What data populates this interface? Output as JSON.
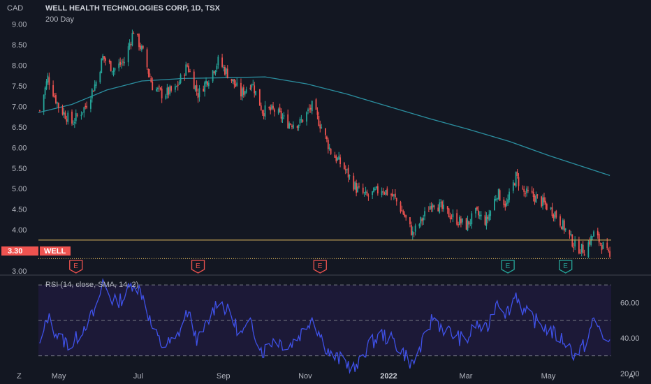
{
  "header": {
    "currency": "CAD",
    "title": "WELL HEALTH TECHNOLOGIES CORP, 1D, TSX",
    "indicator": "200 Day"
  },
  "price_tag": {
    "value": "3.30",
    "symbol": "WELL"
  },
  "rsi_label": "RSI (14, close, SMA, 14, 2)",
  "footer": {
    "left_icon": "Z",
    "right_icon": "A"
  },
  "colors": {
    "background": "#131722",
    "up": "#26a69a",
    "down": "#ef5350",
    "ma": "#2b8fa0",
    "rsi": "#3f51e8",
    "hline": "#e8c060",
    "tag": "#ef5350"
  },
  "chart_data": [
    {
      "type": "candlestick",
      "title": "WELL HEALTH TECHNOLOGIES CORP, 1D, TSX",
      "ylabel": "CAD",
      "ylim": [
        3.0,
        9.25
      ],
      "y_ticks": [
        "9.00",
        "8.50",
        "8.00",
        "7.50",
        "7.00",
        "6.50",
        "6.00",
        "5.50",
        "5.00",
        "4.50",
        "4.00",
        "3.50",
        "3.00"
      ],
      "x_ticks": [
        "May",
        "Jul",
        "Sep",
        "Nov",
        "2022",
        "Mar",
        "May"
      ],
      "x_range": [
        "2021-04-15",
        "2022-06-16"
      ],
      "series": [
        {
          "name": "WELL",
          "close_points": [
            {
              "x": "2021-04-16",
              "y": 6.9
            },
            {
              "x": "2021-04-22",
              "y": 7.7
            },
            {
              "x": "2021-04-30",
              "y": 7.0
            },
            {
              "x": "2021-05-10",
              "y": 6.6
            },
            {
              "x": "2021-05-20",
              "y": 7.0
            },
            {
              "x": "2021-05-28",
              "y": 7.6
            },
            {
              "x": "2021-06-02",
              "y": 8.2
            },
            {
              "x": "2021-06-10",
              "y": 7.9
            },
            {
              "x": "2021-06-18",
              "y": 8.1
            },
            {
              "x": "2021-06-25",
              "y": 8.85
            },
            {
              "x": "2021-07-02",
              "y": 8.3
            },
            {
              "x": "2021-07-09",
              "y": 7.5
            },
            {
              "x": "2021-07-16",
              "y": 7.3
            },
            {
              "x": "2021-07-26",
              "y": 7.4
            },
            {
              "x": "2021-08-04",
              "y": 8.0
            },
            {
              "x": "2021-08-12",
              "y": 7.3
            },
            {
              "x": "2021-08-20",
              "y": 7.7
            },
            {
              "x": "2021-08-27",
              "y": 8.1
            },
            {
              "x": "2021-09-03",
              "y": 7.8
            },
            {
              "x": "2021-09-13",
              "y": 7.3
            },
            {
              "x": "2021-09-21",
              "y": 7.6
            },
            {
              "x": "2021-09-29",
              "y": 6.9
            },
            {
              "x": "2021-10-08",
              "y": 6.9
            },
            {
              "x": "2021-10-18",
              "y": 6.6
            },
            {
              "x": "2021-10-27",
              "y": 6.6
            },
            {
              "x": "2021-11-05",
              "y": 7.0
            },
            {
              "x": "2021-11-12",
              "y": 6.5
            },
            {
              "x": "2021-11-19",
              "y": 5.9
            },
            {
              "x": "2021-11-29",
              "y": 5.5
            },
            {
              "x": "2021-12-08",
              "y": 5.0
            },
            {
              "x": "2021-12-16",
              "y": 4.8
            },
            {
              "x": "2021-12-27",
              "y": 5.0
            },
            {
              "x": "2022-01-05",
              "y": 4.8
            },
            {
              "x": "2022-01-12",
              "y": 4.4
            },
            {
              "x": "2022-01-19",
              "y": 3.9
            },
            {
              "x": "2022-01-27",
              "y": 4.3
            },
            {
              "x": "2022-02-03",
              "y": 4.7
            },
            {
              "x": "2022-02-10",
              "y": 4.5
            },
            {
              "x": "2022-02-18",
              "y": 4.3
            },
            {
              "x": "2022-02-28",
              "y": 4.1
            },
            {
              "x": "2022-03-07",
              "y": 4.4
            },
            {
              "x": "2022-03-15",
              "y": 4.2
            },
            {
              "x": "2022-03-23",
              "y": 4.9
            },
            {
              "x": "2022-03-30",
              "y": 4.6
            },
            {
              "x": "2022-04-06",
              "y": 5.3
            },
            {
              "x": "2022-04-12",
              "y": 4.9
            },
            {
              "x": "2022-04-20",
              "y": 4.8
            },
            {
              "x": "2022-04-28",
              "y": 4.6
            },
            {
              "x": "2022-05-05",
              "y": 4.4
            },
            {
              "x": "2022-05-13",
              "y": 4.0
            },
            {
              "x": "2022-05-20",
              "y": 3.6
            },
            {
              "x": "2022-05-27",
              "y": 3.5
            },
            {
              "x": "2022-06-03",
              "y": 3.9
            },
            {
              "x": "2022-06-10",
              "y": 3.6
            },
            {
              "x": "2022-06-15",
              "y": 3.3
            }
          ]
        },
        {
          "name": "200 Day",
          "points": [
            {
              "x": "2021-04-15",
              "y": 6.85
            },
            {
              "x": "2021-05-10",
              "y": 7.05
            },
            {
              "x": "2021-06-05",
              "y": 7.4
            },
            {
              "x": "2021-07-01",
              "y": 7.62
            },
            {
              "x": "2021-08-01",
              "y": 7.68
            },
            {
              "x": "2021-09-01",
              "y": 7.7
            },
            {
              "x": "2021-10-01",
              "y": 7.72
            },
            {
              "x": "2021-11-01",
              "y": 7.55
            },
            {
              "x": "2021-12-01",
              "y": 7.3
            },
            {
              "x": "2022-01-01",
              "y": 7.0
            },
            {
              "x": "2022-02-01",
              "y": 6.7
            },
            {
              "x": "2022-03-01",
              "y": 6.45
            },
            {
              "x": "2022-04-01",
              "y": 6.15
            },
            {
              "x": "2022-05-01",
              "y": 5.8
            },
            {
              "x": "2022-06-15",
              "y": 5.32
            }
          ]
        }
      ],
      "horizontal_lines": [
        3.75
      ],
      "last_price": 3.3,
      "earnings_markers": [
        {
          "x": "2021-05-13",
          "label": "E",
          "type": "negative"
        },
        {
          "x": "2021-08-12",
          "label": "E",
          "type": "negative"
        },
        {
          "x": "2021-11-11",
          "label": "E",
          "type": "negative"
        },
        {
          "x": "2022-03-31",
          "label": "E",
          "type": "positive"
        },
        {
          "x": "2022-05-13",
          "label": "E",
          "type": "positive"
        }
      ]
    },
    {
      "type": "line",
      "title": "RSI (14, close, SMA, 14, 2)",
      "ylim": [
        18,
        74
      ],
      "y_ticks": [
        "60.00",
        "40.00",
        "20.00"
      ],
      "bands": [
        70,
        50,
        30
      ],
      "series": [
        {
          "name": "RSI",
          "points": [
            {
              "x": "2021-04-16",
              "y": 35
            },
            {
              "x": "2021-04-22",
              "y": 52
            },
            {
              "x": "2021-04-30",
              "y": 40
            },
            {
              "x": "2021-05-10",
              "y": 36
            },
            {
              "x": "2021-05-20",
              "y": 48
            },
            {
              "x": "2021-05-28",
              "y": 55
            },
            {
              "x": "2021-06-02",
              "y": 72
            },
            {
              "x": "2021-06-10",
              "y": 60
            },
            {
              "x": "2021-06-18",
              "y": 63
            },
            {
              "x": "2021-06-25",
              "y": 72
            },
            {
              "x": "2021-07-02",
              "y": 64
            },
            {
              "x": "2021-07-09",
              "y": 45
            },
            {
              "x": "2021-07-16",
              "y": 36
            },
            {
              "x": "2021-07-26",
              "y": 38
            },
            {
              "x": "2021-08-04",
              "y": 55
            },
            {
              "x": "2021-08-12",
              "y": 38
            },
            {
              "x": "2021-08-20",
              "y": 50
            },
            {
              "x": "2021-08-27",
              "y": 62
            },
            {
              "x": "2021-09-03",
              "y": 55
            },
            {
              "x": "2021-09-13",
              "y": 42
            },
            {
              "x": "2021-09-21",
              "y": 48
            },
            {
              "x": "2021-09-29",
              "y": 32
            },
            {
              "x": "2021-10-08",
              "y": 40
            },
            {
              "x": "2021-10-18",
              "y": 35
            },
            {
              "x": "2021-10-27",
              "y": 42
            },
            {
              "x": "2021-11-05",
              "y": 52
            },
            {
              "x": "2021-11-12",
              "y": 40
            },
            {
              "x": "2021-11-19",
              "y": 30
            },
            {
              "x": "2021-11-29",
              "y": 27
            },
            {
              "x": "2021-12-08",
              "y": 22
            },
            {
              "x": "2021-12-16",
              "y": 35
            },
            {
              "x": "2021-12-27",
              "y": 42
            },
            {
              "x": "2022-01-05",
              "y": 38
            },
            {
              "x": "2022-01-12",
              "y": 32
            },
            {
              "x": "2022-01-19",
              "y": 25
            },
            {
              "x": "2022-01-27",
              "y": 38
            },
            {
              "x": "2022-02-03",
              "y": 52
            },
            {
              "x": "2022-02-10",
              "y": 46
            },
            {
              "x": "2022-02-18",
              "y": 42
            },
            {
              "x": "2022-02-28",
              "y": 38
            },
            {
              "x": "2022-03-07",
              "y": 48
            },
            {
              "x": "2022-03-15",
              "y": 44
            },
            {
              "x": "2022-03-23",
              "y": 62
            },
            {
              "x": "2022-03-30",
              "y": 54
            },
            {
              "x": "2022-04-06",
              "y": 65
            },
            {
              "x": "2022-04-12",
              "y": 55
            },
            {
              "x": "2022-04-20",
              "y": 50
            },
            {
              "x": "2022-04-28",
              "y": 46
            },
            {
              "x": "2022-05-05",
              "y": 42
            },
            {
              "x": "2022-05-13",
              "y": 38
            },
            {
              "x": "2022-05-20",
              "y": 30
            },
            {
              "x": "2022-05-27",
              "y": 36
            },
            {
              "x": "2022-06-03",
              "y": 50
            },
            {
              "x": "2022-06-10",
              "y": 42
            },
            {
              "x": "2022-06-15",
              "y": 35
            }
          ]
        },
        {
          "name": "RSI SMA",
          "points": [
            {
              "x": "2021-04-16",
              "y": 42
            },
            {
              "x": "2021-05-20",
              "y": 45
            },
            {
              "x": "2021-06-25",
              "y": 60
            },
            {
              "x": "2021-07-26",
              "y": 48
            },
            {
              "x": "2021-08-27",
              "y": 50
            },
            {
              "x": "2021-09-29",
              "y": 44
            },
            {
              "x": "2021-10-27",
              "y": 40
            },
            {
              "x": "2021-11-29",
              "y": 33
            },
            {
              "x": "2021-12-27",
              "y": 32
            },
            {
              "x": "2022-01-27",
              "y": 34
            },
            {
              "x": "2022-02-28",
              "y": 42
            },
            {
              "x": "2022-03-30",
              "y": 52
            },
            {
              "x": "2022-04-28",
              "y": 52
            },
            {
              "x": "2022-05-27",
              "y": 40
            },
            {
              "x": "2022-06-15",
              "y": 40
            }
          ]
        }
      ]
    }
  ]
}
